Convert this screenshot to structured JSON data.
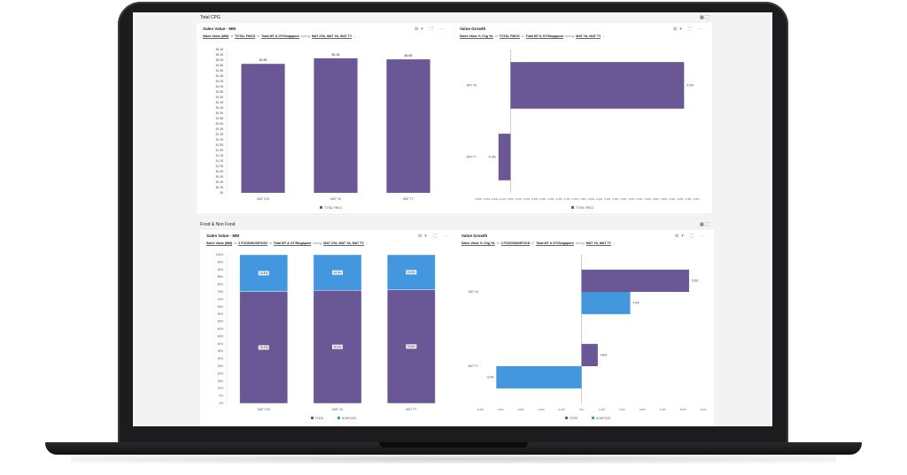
{
  "colors": {
    "food": "#6a5796",
    "nonfood": "#4297de",
    "total": "#6a5796"
  },
  "top_section": {
    "title": "Total CPG"
  },
  "bottom_section": {
    "title": "Food & Non Food"
  },
  "panels": {
    "p1": {
      "title": "Sales Value - MM",
      "tools": "⊞▾ ⛶ ⋯",
      "filters": {
        "measure": "Sales Value (MM)",
        "of": "of",
        "product": "TOTAL FMCG",
        "in": "in",
        "market": "Total MT & GT/Singapore",
        "during": "during",
        "period": "MAT 2YA, MAT YA, MAT TY",
        "caret": "⌄"
      }
    },
    "p2": {
      "title": "Value Growth",
      "tools": "⊞▾ ⛶ ⋯",
      "filters": {
        "measure": "Sales Value % Chg YA",
        "of": "of",
        "product": "TOTAL FMCG",
        "in": "in",
        "market": "Total MT & GT/Singapore",
        "during": "during",
        "period": "MAT YA, MAT TY",
        "caret": "⌄"
      }
    },
    "p3": {
      "title": "Sales Value - MM",
      "tools": "⊞▾ ⛶ ⋯",
      "filters": {
        "measure": "Sales Value (MM)",
        "of": "of",
        "product": "2 FOOD/NONFOOD",
        "in": "in",
        "market": "Total MT & GT/Singapore",
        "during": "during",
        "period": "MAT 2YA, MAT YA, MAT TY",
        "caret": "⌄"
      }
    },
    "p4": {
      "title": "Value Growth",
      "tools": "⊞▾ ⛶ ⋯",
      "filters": {
        "measure": "Sales Value % Chg YA",
        "of": "of",
        "product": "2 FOOD/NONFOOD",
        "in": "in",
        "market": "Total MT & GT/Singapore",
        "during": "during",
        "period": "MAT YA, MAT TY",
        "caret": "⌄"
      }
    }
  },
  "chart_data": [
    {
      "type": "bar",
      "categories": [
        "MAT 2YA",
        "MAT YA",
        "MAT TY"
      ],
      "series": [
        {
          "name": "TOTAL FMCG",
          "values": [
            4.86,
            5.07,
            5.03
          ],
          "labels": [
            "$4.9B",
            "$5.1B",
            "$5.0B"
          ]
        }
      ],
      "ylim": [
        0,
        5.4
      ],
      "yticks": [
        "$0",
        "$0.2B",
        "$0.4B",
        "$0.6B",
        "$0.8B",
        "$1.0B",
        "$1.2B",
        "$1.4B",
        "$1.6B",
        "$1.8B",
        "$2.0B",
        "$2.2B",
        "$2.4B",
        "$2.6B",
        "$2.8B",
        "$3.0B",
        "$3.2B",
        "$3.4B",
        "$3.6B",
        "$3.8B",
        "$4.0B",
        "$4.2B",
        "$4.4B",
        "$4.6B",
        "$4.8B",
        "$5.0B",
        "$5.2B",
        "$5.4B"
      ],
      "legend": "bottom"
    },
    {
      "type": "bar",
      "orientation": "horizontal",
      "categories": [
        "MAT YA",
        "MAT TY"
      ],
      "series": [
        {
          "name": "TOTAL FMCG",
          "values": [
            4.3,
            -0.3
          ],
          "labels": [
            "4.3%",
            "-0.3%"
          ]
        }
      ],
      "xlim": [
        -0.8,
        4.6
      ],
      "xticks": [
        "-0.8%",
        "-0.6%",
        "-0.4%",
        "-0.2%",
        "0.0%",
        "0.2%",
        "0.4%",
        "0.6%",
        "0.8%",
        "1.0%",
        "1.2%",
        "1.4%",
        "1.6%",
        "1.8%",
        "2.0%",
        "2.2%",
        "2.4%",
        "2.6%",
        "2.8%",
        "3.0%",
        "3.2%",
        "3.4%",
        "3.6%",
        "3.8%",
        "4.0%",
        "4.2%",
        "4.4%",
        "4.6%"
      ],
      "legend": "bottom"
    },
    {
      "type": "bar",
      "stacked": true,
      "percent": true,
      "categories": [
        "MAT 2YA",
        "MAT YA",
        "MAT TY"
      ],
      "series": [
        {
          "name": "FOOD",
          "values": [
            75.2,
            76.0,
            76.5
          ],
          "labels": [
            "75.2%",
            "76.0%",
            "76.5%"
          ]
        },
        {
          "name": "NONFOOD",
          "values": [
            24.8,
            24.0,
            23.5
          ],
          "labels": [
            "24.8%",
            "24.0%",
            "23.5%"
          ]
        }
      ],
      "ylim": [
        0,
        100
      ],
      "yticks": [
        "0%",
        "5%",
        "10%",
        "15%",
        "20%",
        "25%",
        "30%",
        "35%",
        "40%",
        "45%",
        "50%",
        "55%",
        "60%",
        "65%",
        "70%",
        "75%",
        "80%",
        "85%",
        "90%",
        "95%",
        "100%"
      ],
      "legend": "bottom"
    },
    {
      "type": "bar",
      "orientation": "horizontal",
      "categories": [
        "MAT YA",
        "MAT TY"
      ],
      "series": [
        {
          "name": "FOOD",
          "values": [
            5.3,
            0.8
          ],
          "labels": [
            "5.3%",
            "0.8%"
          ]
        },
        {
          "name": "NONFOOD",
          "values": [
            2.4,
            -4.2
          ],
          "labels": [
            "2.4%",
            "-4.2%"
          ]
        }
      ],
      "xlim": [
        -5,
        6
      ],
      "xticks": [
        "-5.0%",
        "-4.0%",
        "-3.0%",
        "-2.0%",
        "-1.0%",
        "0%",
        "1.0%",
        "2.0%",
        "3.0%",
        "4.0%",
        "5.0%",
        "6.0%"
      ],
      "legend": "bottom"
    }
  ]
}
